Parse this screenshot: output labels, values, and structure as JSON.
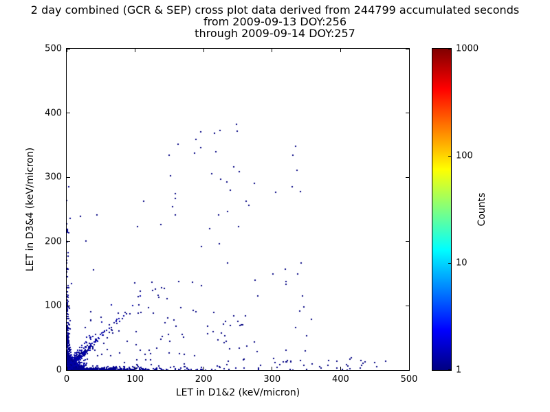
{
  "chart_data": {
    "type": "scatter",
    "title": "2 day combined (GCR & SEP) cross plot data derived from 244799 accumulated seconds",
    "subtitle1": "from 2009-09-13 DOY:256",
    "subtitle2": "through 2009-09-14 DOY:257",
    "accumulated_seconds": 244799,
    "xlabel": "LET in D1&2 (keV/micron)",
    "ylabel": "LET in D3&4 (keV/micron)",
    "xlim": [
      0,
      500
    ],
    "ylim": [
      0,
      500
    ],
    "xticks": [
      0,
      100,
      200,
      300,
      400,
      500
    ],
    "yticks": [
      0,
      100,
      200,
      300,
      400,
      500
    ],
    "grid": false,
    "background": "#ffffff",
    "colorbar": {
      "label": "Counts",
      "scale": "log",
      "range": [
        1,
        1000
      ],
      "ticks": [
        1,
        10,
        100,
        1000
      ],
      "colormap": "jet",
      "stops": [
        [
          "0%",
          "#000080"
        ],
        [
          "12.5%",
          "#0000ff"
        ],
        [
          "37.5%",
          "#00ffff"
        ],
        [
          "62.5%",
          "#ffff00"
        ],
        [
          "87.5%",
          "#ff0000"
        ],
        [
          "100%",
          "#800000"
        ]
      ]
    },
    "seed": 42,
    "clusters": [
      {
        "kind": "blob",
        "n": 1400,
        "x": {
          "type": "exp",
          "scale": 5,
          "max": 35
        },
        "y": {
          "type": "exp",
          "scale": 5,
          "max": 35
        },
        "color": "#0000a8",
        "size": 2
      },
      {
        "kind": "blob",
        "n": 350,
        "x": {
          "type": "exp",
          "scale": 2,
          "max": 10
        },
        "y": {
          "type": "exp",
          "scale": 2,
          "max": 10
        },
        "color": "#0048ff",
        "size": 2
      },
      {
        "kind": "blob",
        "n": 90,
        "x": {
          "type": "exp",
          "scale": 1.2,
          "max": 6
        },
        "y": {
          "type": "exp",
          "scale": 1.2,
          "max": 6
        },
        "color": "#00c8f0",
        "size": 2
      },
      {
        "kind": "blob",
        "n": 500,
        "x": {
          "type": "exp",
          "scale": 55,
          "max": 480
        },
        "y": {
          "type": "exp",
          "scale": 1.6,
          "max": 6
        },
        "color": "#000090",
        "size": 2
      },
      {
        "kind": "blob",
        "n": 260,
        "x": {
          "type": "exp",
          "scale": 1.6,
          "max": 7
        },
        "y": {
          "type": "exp",
          "scale": 45,
          "max": 305
        },
        "color": "#000090",
        "size": 2
      },
      {
        "kind": "diag",
        "n": 260,
        "t": {
          "type": "exp",
          "scale": 22,
          "max": 150
        },
        "ratio": 1.05,
        "jitter": 7,
        "color": "#0000a8",
        "size": 2
      },
      {
        "kind": "diag",
        "n": 90,
        "t": {
          "type": "exp",
          "scale": 15,
          "max": 70
        },
        "ratio": 1.5,
        "jitter": 10,
        "color": "#0000a0",
        "size": 2
      },
      {
        "kind": "diag",
        "n": 60,
        "t": {
          "type": "exp",
          "scale": 45,
          "max": 290
        },
        "ratio": 1.0,
        "jitter": 18,
        "color": "#000080",
        "size": 2
      },
      {
        "kind": "blob",
        "n": 140,
        "x": {
          "type": "uniform",
          "min": 15,
          "max": 360
        },
        "y": {
          "type": "exp",
          "scale": 90,
          "max": 300
        },
        "color": "#000080",
        "size": 2
      },
      {
        "kind": "blob",
        "n": 28,
        "x": {
          "type": "uniform",
          "min": 140,
          "max": 340
        },
        "y": {
          "type": "uniform",
          "min": 240,
          "max": 385
        },
        "color": "#000080",
        "size": 2
      },
      {
        "kind": "blob",
        "n": 30,
        "x": {
          "type": "uniform",
          "min": 300,
          "max": 480
        },
        "y": {
          "type": "uniform",
          "min": 0,
          "max": 20
        },
        "color": "#000080",
        "size": 2
      }
    ]
  }
}
